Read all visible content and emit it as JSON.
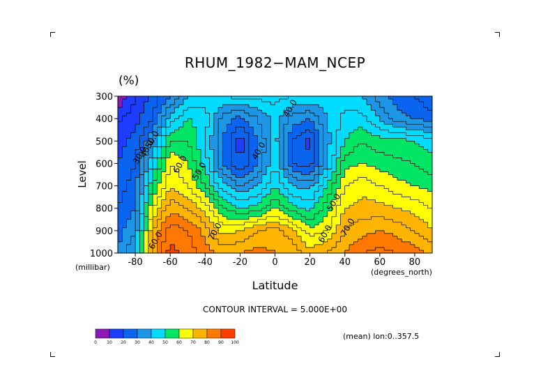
{
  "chart_data": {
    "type": "heatmap",
    "title": "RHUM_1982−MAM_NCEP",
    "units": "(%)",
    "xlabel": "Latitude",
    "x_unit": "(degrees_north)",
    "ylabel": "Level",
    "y_unit": "(millibar)",
    "xlim": [
      -90,
      90
    ],
    "ylim": [
      1000,
      300
    ],
    "x_ticks": [
      "-80",
      "-60",
      "-40",
      "-20",
      "0",
      "20",
      "40",
      "60",
      "80"
    ],
    "x_tick_values": [
      -80,
      -60,
      -40,
      -20,
      0,
      20,
      40,
      60,
      80
    ],
    "y_ticks": [
      "300",
      "400",
      "500",
      "600",
      "700",
      "800",
      "900",
      "1000"
    ],
    "y_tick_values": [
      300,
      400,
      500,
      600,
      700,
      800,
      900,
      1000
    ],
    "contour_interval_text": "CONTOUR INTERVAL = 5.000E+00",
    "contour_labels": [
      {
        "text": "30.0",
        "lat": -76,
        "lev": 570
      },
      {
        "text": "40.0",
        "lat": -72,
        "lev": 540
      },
      {
        "text": "50.0",
        "lat": -69,
        "lev": 500
      },
      {
        "text": "60.0",
        "lat": -53,
        "lev": 610
      },
      {
        "text": "50.0",
        "lat": -42,
        "lev": 640
      },
      {
        "text": "40.0",
        "lat": -8,
        "lev": 550
      },
      {
        "text": "40.0",
        "lat": 10,
        "lev": 360
      },
      {
        "text": "50.0",
        "lat": 35,
        "lev": 780
      },
      {
        "text": "70.0",
        "lat": -33,
        "lev": 910
      },
      {
        "text": "60.0",
        "lat": 30,
        "lev": 920
      },
      {
        "text": "70.0",
        "lat": 43,
        "lev": 890
      },
      {
        "text": "60.0",
        "lat": -67,
        "lev": 950
      }
    ],
    "colorbar": {
      "labels": [
        "0",
        "10",
        "20",
        "30",
        "40",
        "50",
        "60",
        "70",
        "80",
        "90",
        "100"
      ],
      "colors": [
        "#8c1ab4",
        "#1e3cff",
        "#0b64f0",
        "#1e96e6",
        "#00dcff",
        "#00e664",
        "#ffff00",
        "#ffb400",
        "#ff7800",
        "#ff3c00"
      ]
    },
    "grid": false,
    "lat": [
      -90,
      -80,
      -70,
      -60,
      -50,
      -40,
      -30,
      -20,
      -10,
      0,
      10,
      20,
      30,
      40,
      50,
      60,
      70,
      80,
      90
    ],
    "levels": [
      300,
      400,
      500,
      600,
      700,
      800,
      900,
      1000
    ],
    "values": [
      [
        5,
        15,
        22,
        30,
        40,
        42,
        45,
        47,
        47,
        47,
        45,
        45,
        43,
        42,
        40,
        32,
        28,
        25,
        20
      ],
      [
        14,
        18,
        25,
        42,
        50,
        48,
        33,
        28,
        35,
        42,
        33,
        30,
        40,
        47,
        47,
        40,
        32,
        30,
        28
      ],
      [
        18,
        22,
        35,
        55,
        55,
        45,
        30,
        17,
        30,
        42,
        25,
        18,
        38,
        50,
        55,
        52,
        52,
        50,
        47
      ],
      [
        20,
        25,
        45,
        65,
        60,
        48,
        30,
        20,
        30,
        45,
        25,
        22,
        40,
        58,
        60,
        58,
        56,
        55,
        52
      ],
      [
        22,
        28,
        55,
        70,
        65,
        55,
        42,
        35,
        40,
        50,
        40,
        38,
        50,
        65,
        68,
        65,
        62,
        60,
        58
      ],
      [
        25,
        30,
        65,
        78,
        75,
        68,
        55,
        50,
        52,
        60,
        52,
        48,
        58,
        70,
        72,
        72,
        70,
        68,
        65
      ],
      [
        28,
        35,
        75,
        88,
        85,
        78,
        68,
        70,
        75,
        77,
        72,
        62,
        65,
        75,
        78,
        80,
        78,
        75,
        70
      ],
      [
        30,
        40,
        78,
        92,
        88,
        82,
        78,
        80,
        82,
        80,
        78,
        72,
        75,
        80,
        85,
        87,
        85,
        82,
        78
      ]
    ]
  }
}
